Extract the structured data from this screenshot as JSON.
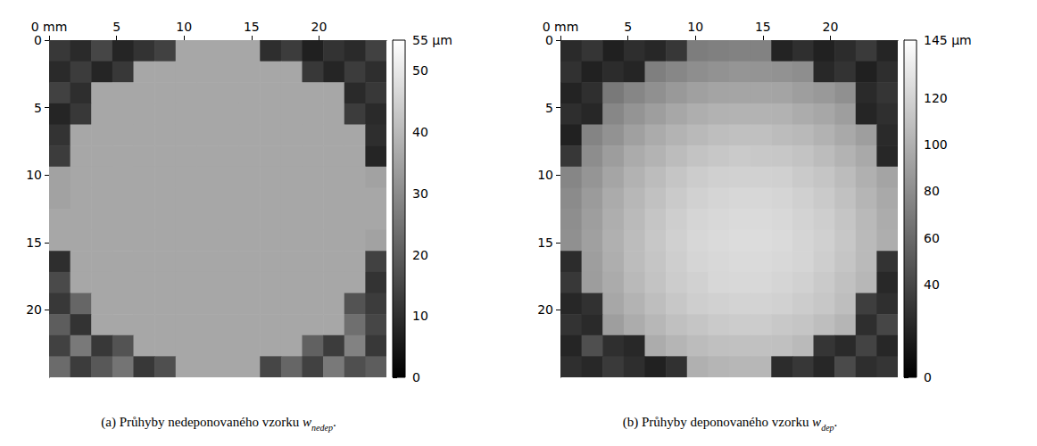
{
  "chart_data": [
    {
      "type": "heatmap",
      "caption": {
        "text": "(a) Průhyby nedeponovaného vzorku",
        "symbol": "w",
        "subscript": "nedep",
        "end": "."
      },
      "xlim": [
        0,
        25
      ],
      "ylim": [
        0,
        25
      ],
      "xticks": [
        {
          "value": 0,
          "label": "0 mm"
        },
        5,
        10,
        15,
        20
      ],
      "yticks": [
        0,
        5,
        10,
        15,
        20
      ],
      "grid": false,
      "x_edges": [
        0,
        1.5625,
        3.125,
        4.6875,
        6.25,
        7.8125,
        9.375,
        10.9375,
        12.5,
        14.0625,
        15.625,
        17.1875,
        18.75,
        20.3125,
        21.875,
        23.4375,
        25
      ],
      "y_edges": [
        0,
        1.5625,
        3.125,
        4.6875,
        6.25,
        7.8125,
        9.375,
        10.9375,
        12.5,
        14.0625,
        15.625,
        17.1875,
        18.75,
        20.3125,
        21.875,
        23.4375,
        25
      ],
      "cells": [
        [
          12,
          9,
          15,
          8,
          11,
          14,
          36,
          36,
          36,
          36,
          10,
          13,
          7,
          11,
          9,
          14
        ],
        [
          9,
          13,
          8,
          12,
          36,
          36,
          36,
          36,
          36,
          36,
          36,
          36,
          12,
          8,
          13,
          10
        ],
        [
          14,
          10,
          36,
          36,
          36,
          36,
          36,
          36,
          36,
          36,
          36,
          36,
          36,
          36,
          9,
          12
        ],
        [
          8,
          12,
          36,
          36,
          36,
          36,
          36,
          36,
          36,
          36,
          36,
          36,
          36,
          36,
          13,
          9
        ],
        [
          11,
          36,
          36,
          36,
          36,
          36,
          36,
          36,
          36,
          36,
          36,
          36,
          36,
          36,
          36,
          10
        ],
        [
          13,
          36,
          36,
          36,
          36,
          36,
          36,
          36,
          36,
          36,
          36,
          36,
          36,
          36,
          36,
          8
        ],
        [
          35,
          36,
          36,
          36,
          36,
          36,
          36,
          36,
          36,
          36,
          36,
          36,
          36,
          36,
          36,
          35
        ],
        [
          35,
          36,
          36,
          36,
          36,
          36,
          36,
          36,
          36,
          36,
          36,
          36,
          36,
          36,
          36,
          36
        ],
        [
          36,
          36,
          36,
          36,
          36,
          36,
          36,
          36,
          36,
          36,
          36,
          36,
          36,
          36,
          36,
          36
        ],
        [
          36,
          36,
          36,
          36,
          36,
          36,
          36,
          36,
          36,
          36,
          36,
          36,
          36,
          36,
          36,
          35
        ],
        [
          10,
          36,
          36,
          36,
          36,
          36,
          36,
          36,
          36,
          36,
          36,
          36,
          36,
          36,
          36,
          14
        ],
        [
          16,
          36,
          36,
          36,
          36,
          36,
          36,
          36,
          36,
          36,
          36,
          36,
          36,
          36,
          36,
          11
        ],
        [
          12,
          22,
          36,
          36,
          36,
          36,
          36,
          36,
          36,
          36,
          36,
          36,
          36,
          36,
          18,
          13
        ],
        [
          20,
          11,
          36,
          36,
          36,
          36,
          36,
          36,
          36,
          36,
          36,
          36,
          36,
          36,
          24,
          15
        ],
        [
          14,
          26,
          12,
          18,
          36,
          36,
          36,
          36,
          36,
          36,
          36,
          36,
          21,
          13,
          28,
          12
        ],
        [
          23,
          13,
          19,
          25,
          12,
          17,
          36,
          36,
          36,
          36,
          15,
          22,
          14,
          26,
          17,
          20
        ]
      ],
      "colorbar": {
        "range": [
          0,
          55
        ],
        "ticks": [
          0,
          10,
          20,
          30,
          40,
          50,
          {
            "value": 55,
            "label": "55 µm"
          }
        ]
      }
    },
    {
      "type": "heatmap",
      "caption": {
        "text": "(b) Průhyby deponovaného vzorku",
        "symbol": "w",
        "subscript": "dep",
        "end": "."
      },
      "xlim": [
        0,
        25
      ],
      "ylim": [
        0,
        25
      ],
      "xticks": [
        {
          "value": 0,
          "label": "0 mm"
        },
        5,
        10,
        15,
        20
      ],
      "yticks": [
        0,
        5,
        10,
        15,
        20
      ],
      "grid": false,
      "x_edges": [
        0,
        1.5625,
        3.125,
        4.6875,
        6.25,
        7.8125,
        9.375,
        10.9375,
        12.5,
        14.0625,
        15.625,
        17.1875,
        18.75,
        20.3125,
        21.875,
        23.4375,
        25
      ],
      "y_edges": [
        0,
        1.5625,
        3.125,
        4.6875,
        6.25,
        7.8125,
        9.375,
        10.9375,
        12.5,
        14.0625,
        15.625,
        17.1875,
        18.75,
        20.3125,
        21.875,
        23.4375,
        25
      ],
      "cells": [
        [
          24,
          30,
          18,
          26,
          22,
          31,
          71,
          73,
          74,
          74,
          20,
          27,
          19,
          25,
          33,
          21
        ],
        [
          28,
          19,
          25,
          21,
          72,
          77,
          81,
          83,
          85,
          84,
          83,
          81,
          23,
          29,
          18,
          26
        ],
        [
          20,
          27,
          69,
          76,
          82,
          87,
          91,
          93,
          94,
          94,
          93,
          90,
          87,
          82,
          24,
          30
        ],
        [
          26,
          22,
          77,
          84,
          90,
          95,
          99,
          101,
          102,
          102,
          101,
          98,
          95,
          90,
          21,
          27
        ],
        [
          19,
          75,
          83,
          91,
          97,
          102,
          105,
          108,
          109,
          109,
          107,
          105,
          101,
          96,
          90,
          24
        ],
        [
          31,
          80,
          89,
          97,
          102,
          107,
          111,
          113,
          115,
          114,
          113,
          111,
          107,
          102,
          96,
          22
        ],
        [
          76,
          85,
          94,
          101,
          107,
          112,
          116,
          118,
          119,
          119,
          118,
          115,
          112,
          107,
          100,
          93
        ],
        [
          79,
          88,
          97,
          104,
          110,
          115,
          119,
          121,
          122,
          122,
          121,
          118,
          115,
          110,
          103,
          96
        ],
        [
          81,
          90,
          99,
          106,
          112,
          117,
          121,
          123,
          124,
          124,
          123,
          120,
          117,
          112,
          105,
          98
        ],
        [
          82,
          91,
          100,
          107,
          113,
          118,
          122,
          124,
          125,
          125,
          124,
          121,
          118,
          113,
          106,
          99
        ],
        [
          25,
          90,
          99,
          107,
          112,
          117,
          121,
          123,
          124,
          124,
          123,
          121,
          117,
          112,
          106,
          29
        ],
        [
          32,
          89,
          97,
          105,
          111,
          116,
          119,
          122,
          123,
          123,
          121,
          119,
          115,
          110,
          104,
          23
        ],
        [
          22,
          28,
          95,
          102,
          108,
          113,
          117,
          119,
          120,
          120,
          119,
          116,
          113,
          108,
          35,
          27
        ],
        [
          29,
          24,
          90,
          98,
          104,
          109,
          112,
          115,
          116,
          116,
          114,
          112,
          108,
          103,
          26,
          40
        ],
        [
          21,
          45,
          27,
          23,
          98,
          103,
          107,
          109,
          110,
          110,
          109,
          106,
          30,
          24,
          38,
          22
        ],
        [
          27,
          23,
          33,
          26,
          19,
          28,
          100,
          103,
          104,
          104,
          25,
          31,
          22,
          42,
          26,
          30
        ]
      ],
      "colorbar": {
        "range": [
          0,
          145
        ],
        "ticks": [
          0,
          40,
          60,
          80,
          100,
          120,
          {
            "value": 145,
            "label": "145 µm"
          }
        ]
      }
    }
  ]
}
